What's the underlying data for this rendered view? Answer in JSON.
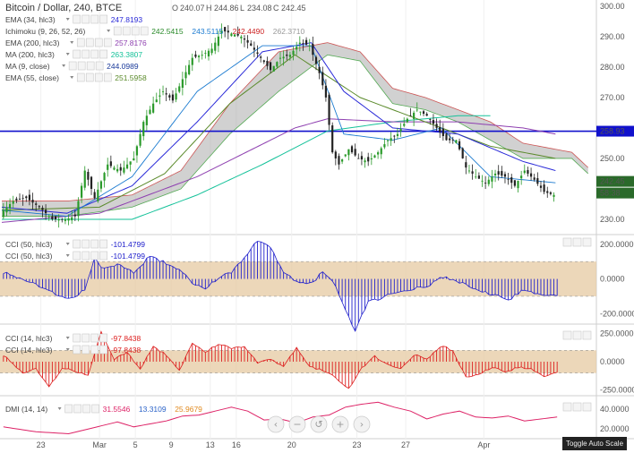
{
  "header": {
    "title": "Bitcoin / Dollar, 240, BTCE",
    "ohlc": {
      "o_label": "O",
      "o": "240.07",
      "h_label": "H",
      "h": "244.86",
      "l_label": "L",
      "l": "234.08",
      "c_label": "C",
      "c": "242.45"
    }
  },
  "legend": {
    "main": [
      {
        "name": "EMA (34, hlc3)",
        "values": [
          "247.8193"
        ],
        "colors": [
          "#2a2ad8"
        ]
      },
      {
        "name": "Ichimoku (9, 26, 52, 26)",
        "values": [
          "242.5415",
          "243.5115",
          "242.4490",
          "262.3710"
        ],
        "colors": [
          "#2a8a2a",
          "#1a7ad0",
          "#cc2222",
          "#999999"
        ]
      },
      {
        "name": "EMA (200, hlc3)",
        "values": [
          "257.8176"
        ],
        "colors": [
          "#8e3fb0"
        ]
      },
      {
        "name": "MA (200, hlc3)",
        "values": [
          "263.3807"
        ],
        "colors": [
          "#16c29a"
        ]
      },
      {
        "name": "MA (9, close)",
        "values": [
          "244.0989"
        ],
        "colors": [
          "#1a3a9a"
        ]
      },
      {
        "name": "EMA (55, close)",
        "values": [
          "251.5958"
        ],
        "colors": [
          "#5a8a2a"
        ]
      }
    ],
    "cci50": [
      {
        "name": "CCI (50, hlc3)",
        "values": [
          "-101.4799"
        ],
        "colors": [
          "#2020cc"
        ]
      },
      {
        "name": "CCI (50, hlc3)",
        "values": [
          "-101.4799"
        ],
        "colors": [
          "#2020cc"
        ]
      }
    ],
    "cci14": [
      {
        "name": "CCI (14, hlc3)",
        "values": [
          "-97.8438"
        ],
        "colors": [
          "#dd2020"
        ]
      },
      {
        "name": "CCI (14, hlc3)",
        "values": [
          "-97.8438"
        ],
        "colors": [
          "#dd2020"
        ]
      }
    ],
    "dmi": [
      {
        "name": "DMI (14, 14)",
        "values": [
          "31.5546",
          "13.3109",
          "25.9679"
        ],
        "colors": [
          "#dd2266",
          "#2a62c8",
          "#e08a20"
        ]
      }
    ]
  },
  "axes": {
    "main": {
      "ticks": [
        "300.00",
        "290.00",
        "280.00",
        "270.00",
        "250.00",
        "230.00"
      ],
      "price_tag": "242.45",
      "time_tag": "58:38",
      "hline_tag": "258.93"
    },
    "cci50": {
      "ticks": [
        "200.0000",
        "0.0000",
        "-200.0000"
      ]
    },
    "cci14": {
      "ticks": [
        "250.0000",
        "0.0000",
        "-250.0000"
      ]
    },
    "dmi": {
      "ticks": [
        "40.0000",
        "20.0000"
      ]
    },
    "x": [
      "23",
      "Mar",
      "5",
      "9",
      "13",
      "16",
      "20",
      "23",
      "27",
      "Apr"
    ]
  },
  "toolbar": {
    "toggle_label": "Toggle Auto Scale"
  },
  "colors": {
    "up": "#2a9a2a",
    "down": "#222222",
    "hline": "#1111cc",
    "cloud": "#9a9a9a",
    "cci50": "#2020cc",
    "cci14": "#dd2020",
    "dmi": "#dd2266",
    "band": "#e5c9a2"
  },
  "chart_data": [
    {
      "type": "candlestick",
      "title": "Bitcoin / Dollar, 240, BTCE",
      "x_labels": [
        "23",
        "Mar",
        "5",
        "9",
        "13",
        "16",
        "20",
        "23",
        "27",
        "Apr"
      ],
      "ylim": [
        225,
        302
      ],
      "anchors_close": [
        [
          0,
          232
        ],
        [
          4,
          236
        ],
        [
          8,
          237
        ],
        [
          12,
          234
        ],
        [
          16,
          230
        ],
        [
          20,
          230
        ],
        [
          23,
          231
        ],
        [
          26,
          246
        ],
        [
          29,
          237
        ],
        [
          33,
          248
        ],
        [
          37,
          246
        ],
        [
          41,
          250
        ],
        [
          44,
          262
        ],
        [
          47,
          268
        ],
        [
          50,
          272
        ],
        [
          53,
          269
        ],
        [
          56,
          276
        ],
        [
          59,
          283
        ],
        [
          62,
          284
        ],
        [
          65,
          286
        ],
        [
          68,
          292
        ],
        [
          71,
          291
        ],
        [
          74,
          290
        ],
        [
          77,
          287
        ],
        [
          80,
          283
        ],
        [
          83,
          279
        ],
        [
          86,
          283
        ],
        [
          89,
          284
        ],
        [
          92,
          288
        ],
        [
          95,
          287
        ],
        [
          98,
          278
        ],
        [
          100,
          270
        ],
        [
          102,
          252
        ],
        [
          104,
          248
        ],
        [
          107,
          253
        ],
        [
          110,
          250
        ],
        [
          113,
          249
        ],
        [
          116,
          252
        ],
        [
          119,
          256
        ],
        [
          122,
          258
        ],
        [
          125,
          263
        ],
        [
          128,
          266
        ],
        [
          131,
          264
        ],
        [
          134,
          260
        ],
        [
          137,
          256
        ],
        [
          140,
          256
        ],
        [
          143,
          247
        ],
        [
          146,
          244
        ],
        [
          149,
          242
        ],
        [
          152,
          245
        ],
        [
          155,
          244
        ],
        [
          158,
          241
        ],
        [
          161,
          246
        ],
        [
          164,
          243
        ],
        [
          167,
          239
        ],
        [
          170,
          238
        ]
      ],
      "ema34": [
        [
          0,
          234
        ],
        [
          20,
          232
        ],
        [
          40,
          241
        ],
        [
          60,
          262
        ],
        [
          80,
          285
        ],
        [
          95,
          288
        ],
        [
          105,
          272
        ],
        [
          120,
          260
        ],
        [
          140,
          258
        ],
        [
          160,
          249
        ],
        [
          170,
          246
        ]
      ],
      "ema200": [
        [
          0,
          229
        ],
        [
          30,
          232
        ],
        [
          60,
          244
        ],
        [
          90,
          260
        ],
        [
          100,
          263
        ],
        [
          120,
          262
        ],
        [
          140,
          262
        ],
        [
          160,
          260
        ],
        [
          170,
          258
        ]
      ],
      "ma200": [
        [
          0,
          230
        ],
        [
          40,
          230
        ],
        [
          60,
          238
        ],
        [
          80,
          248
        ],
        [
          100,
          259
        ],
        [
          120,
          262
        ],
        [
          140,
          264
        ],
        [
          150,
          264
        ]
      ],
      "ema55": [
        [
          0,
          233
        ],
        [
          30,
          234
        ],
        [
          50,
          245
        ],
        [
          70,
          268
        ],
        [
          90,
          284
        ],
        [
          110,
          270
        ],
        [
          130,
          262
        ],
        [
          150,
          254
        ],
        [
          170,
          250
        ]
      ],
      "ma9": [
        [
          0,
          233
        ],
        [
          20,
          231
        ],
        [
          40,
          244
        ],
        [
          60,
          272
        ],
        [
          80,
          287
        ],
        [
          95,
          287
        ],
        [
          105,
          258
        ],
        [
          120,
          256
        ],
        [
          135,
          260
        ],
        [
          150,
          244
        ],
        [
          170,
          242
        ]
      ],
      "cloud_top": [
        [
          0,
          236
        ],
        [
          20,
          236
        ],
        [
          40,
          238
        ],
        [
          55,
          246
        ],
        [
          70,
          268
        ],
        [
          85,
          285
        ],
        [
          100,
          288
        ],
        [
          110,
          285
        ],
        [
          120,
          273
        ],
        [
          130,
          270
        ],
        [
          140,
          266
        ],
        [
          150,
          262
        ],
        [
          160,
          255
        ],
        [
          175,
          252
        ],
        [
          180,
          247
        ]
      ],
      "cloud_bottom": [
        [
          0,
          231
        ],
        [
          20,
          231
        ],
        [
          40,
          234
        ],
        [
          55,
          240
        ],
        [
          70,
          258
        ],
        [
          85,
          272
        ],
        [
          100,
          284
        ],
        [
          110,
          282
        ],
        [
          120,
          268
        ],
        [
          130,
          266
        ],
        [
          140,
          262
        ],
        [
          150,
          256
        ],
        [
          160,
          250
        ],
        [
          175,
          250
        ],
        [
          180,
          245
        ]
      ],
      "hline": 258.93
    },
    {
      "type": "bar",
      "title": "CCI (50, hlc3)",
      "ylim": [
        -260,
        240
      ],
      "band": [
        -100,
        100
      ],
      "anchors": [
        [
          0,
          40
        ],
        [
          10,
          -30
        ],
        [
          20,
          -120
        ],
        [
          25,
          -60
        ],
        [
          28,
          120
        ],
        [
          30,
          60
        ],
        [
          35,
          80
        ],
        [
          40,
          40
        ],
        [
          45,
          130
        ],
        [
          50,
          90
        ],
        [
          55,
          40
        ],
        [
          58,
          -30
        ],
        [
          62,
          -60
        ],
        [
          66,
          10
        ],
        [
          70,
          40
        ],
        [
          74,
          120
        ],
        [
          78,
          220
        ],
        [
          82,
          180
        ],
        [
          86,
          40
        ],
        [
          90,
          -20
        ],
        [
          95,
          -20
        ],
        [
          98,
          40
        ],
        [
          102,
          -40
        ],
        [
          106,
          -220
        ],
        [
          108,
          -300
        ],
        [
          112,
          -130
        ],
        [
          116,
          -110
        ],
        [
          120,
          -80
        ],
        [
          125,
          -60
        ],
        [
          130,
          -40
        ],
        [
          135,
          10
        ],
        [
          140,
          -20
        ],
        [
          145,
          -60
        ],
        [
          150,
          -90
        ],
        [
          155,
          -120
        ],
        [
          160,
          -60
        ],
        [
          165,
          -90
        ],
        [
          170,
          -101
        ]
      ]
    },
    {
      "type": "bar",
      "title": "CCI (14, hlc3)",
      "ylim": [
        -300,
        300
      ],
      "band": [
        -100,
        100
      ],
      "anchors": [
        [
          0,
          60
        ],
        [
          6,
          -100
        ],
        [
          10,
          -60
        ],
        [
          14,
          -220
        ],
        [
          18,
          -60
        ],
        [
          22,
          -80
        ],
        [
          26,
          -120
        ],
        [
          30,
          260
        ],
        [
          34,
          20
        ],
        [
          38,
          80
        ],
        [
          42,
          -60
        ],
        [
          46,
          130
        ],
        [
          50,
          60
        ],
        [
          54,
          -80
        ],
        [
          58,
          160
        ],
        [
          62,
          80
        ],
        [
          66,
          160
        ],
        [
          70,
          120
        ],
        [
          74,
          130
        ],
        [
          78,
          -10
        ],
        [
          82,
          20
        ],
        [
          86,
          -40
        ],
        [
          90,
          120
        ],
        [
          94,
          -40
        ],
        [
          98,
          -80
        ],
        [
          102,
          -140
        ],
        [
          106,
          -240
        ],
        [
          110,
          -60
        ],
        [
          114,
          50
        ],
        [
          118,
          -30
        ],
        [
          122,
          -60
        ],
        [
          126,
          60
        ],
        [
          130,
          30
        ],
        [
          135,
          140
        ],
        [
          138,
          90
        ],
        [
          142,
          -140
        ],
        [
          146,
          -110
        ],
        [
          150,
          -50
        ],
        [
          154,
          -90
        ],
        [
          158,
          -50
        ],
        [
          162,
          -60
        ],
        [
          166,
          -130
        ],
        [
          170,
          -98
        ]
      ]
    },
    {
      "type": "line",
      "title": "DMI (14, 14)",
      "ylim": [
        10,
        50
      ],
      "points": [
        [
          0,
          22
        ],
        [
          10,
          17
        ],
        [
          20,
          15
        ],
        [
          30,
          23
        ],
        [
          35,
          27
        ],
        [
          40,
          22
        ],
        [
          50,
          28
        ],
        [
          55,
          33
        ],
        [
          60,
          34
        ],
        [
          70,
          42
        ],
        [
          75,
          38
        ],
        [
          80,
          29
        ],
        [
          85,
          30
        ],
        [
          90,
          26
        ],
        [
          95,
          32
        ],
        [
          100,
          34
        ],
        [
          105,
          42
        ],
        [
          110,
          45
        ],
        [
          115,
          47
        ],
        [
          120,
          42
        ],
        [
          125,
          38
        ],
        [
          130,
          30
        ],
        [
          135,
          35
        ],
        [
          140,
          38
        ],
        [
          145,
          32
        ],
        [
          150,
          31
        ],
        [
          155,
          33
        ],
        [
          160,
          28
        ],
        [
          165,
          30
        ],
        [
          170,
          32
        ]
      ]
    }
  ]
}
